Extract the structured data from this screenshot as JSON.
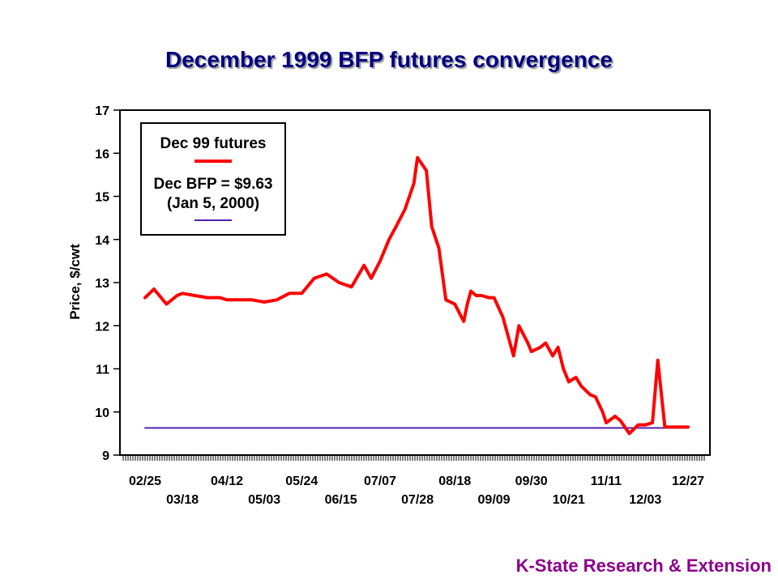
{
  "title": "December 1999 BFP futures convergence",
  "footer": "K-State Research & Extension",
  "colors": {
    "title": "#000080",
    "futures_line": "#ff0000",
    "bfp_line": "#5020b0",
    "footer": "#8b008b"
  },
  "chart_data": {
    "type": "line",
    "title": "December 1999 BFP futures convergence",
    "xlabel": "",
    "ylabel": "Price, $/cwt",
    "ylim": [
      9,
      17
    ],
    "yticks": [
      9,
      10,
      11,
      12,
      13,
      14,
      15,
      16,
      17
    ],
    "x_range": [
      "02/25",
      "12/27"
    ],
    "x_tick_labels_top": [
      "02/25",
      "04/12",
      "05/24",
      "07/07",
      "08/18",
      "09/30",
      "11/11",
      "12/27"
    ],
    "x_tick_labels_bottom": [
      "03/18",
      "05/03",
      "06/15",
      "07/28",
      "09/09",
      "10/21",
      "12/03"
    ],
    "grid": false,
    "legend": {
      "placement": "top-left",
      "entries": [
        {
          "label": "Dec 99 futures"
        },
        {
          "label": "Dec BFP = $9.63"
        },
        {
          "label": "(Jan 5, 2000)"
        }
      ]
    },
    "series": [
      {
        "name": "Dec 99 futures",
        "x": [
          "02/25",
          "03/02",
          "03/09",
          "03/15",
          "03/18",
          "03/25",
          "04/01",
          "04/08",
          "04/12",
          "04/19",
          "04/26",
          "05/03",
          "05/10",
          "05/17",
          "05/24",
          "05/31",
          "06/07",
          "06/14",
          "06/21",
          "06/28",
          "07/02",
          "07/07",
          "07/12",
          "07/16",
          "07/21",
          "07/26",
          "07/28",
          "08/02",
          "08/05",
          "08/09",
          "08/13",
          "08/18",
          "08/23",
          "08/25",
          "08/27",
          "08/30",
          "09/02",
          "09/06",
          "09/09",
          "09/14",
          "09/16",
          "09/20",
          "09/23",
          "09/28",
          "09/30",
          "10/05",
          "10/08",
          "10/12",
          "10/15",
          "10/18",
          "10/21",
          "10/25",
          "10/28",
          "11/02",
          "11/05",
          "11/09",
          "11/11",
          "11/16",
          "11/19",
          "11/24",
          "11/29",
          "12/03",
          "12/07",
          "12/10",
          "12/14",
          "12/17",
          "12/21",
          "12/22",
          "12/23",
          "12/27"
        ],
        "values": [
          12.65,
          12.85,
          12.5,
          12.7,
          12.75,
          12.7,
          12.65,
          12.65,
          12.6,
          12.6,
          12.6,
          12.55,
          12.6,
          12.75,
          12.75,
          13.1,
          13.2,
          13.0,
          12.9,
          13.4,
          13.1,
          13.5,
          14.0,
          14.3,
          14.7,
          15.3,
          15.9,
          15.6,
          14.3,
          13.8,
          12.6,
          12.5,
          12.1,
          12.5,
          12.8,
          12.7,
          12.7,
          12.65,
          12.65,
          12.2,
          11.9,
          11.3,
          12.0,
          11.6,
          11.4,
          11.5,
          11.6,
          11.3,
          11.5,
          11.0,
          10.7,
          10.8,
          10.6,
          10.4,
          10.35,
          10.0,
          9.75,
          9.9,
          9.8,
          9.5,
          9.7,
          9.7,
          9.75,
          11.2,
          9.65,
          9.65,
          9.65,
          9.65,
          9.65,
          9.65
        ]
      },
      {
        "name": "Dec BFP = $9.63",
        "x": [
          "02/25",
          "12/27"
        ],
        "values": [
          9.63,
          9.63
        ]
      }
    ]
  }
}
